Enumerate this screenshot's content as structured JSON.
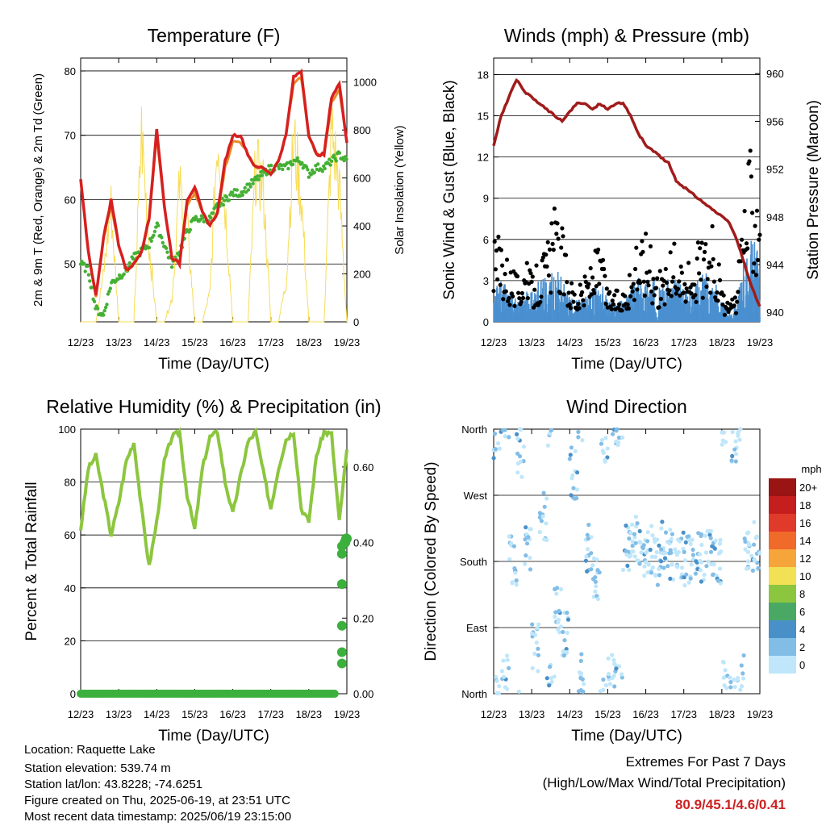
{
  "x_ticks": [
    "12/23",
    "13/23",
    "14/23",
    "15/23",
    "16/23",
    "17/23",
    "18/23",
    "19/23"
  ],
  "footer": {
    "location": "Location: Raquette Lake",
    "elevation": "Station elevation: 539.74 m",
    "latlon": "Station lat/lon: 43.8228; -74.6251",
    "created": "Figure created on Thu, 2025-06-19, at 23:51 UTC",
    "recent": "Most recent data timestamp: 2025/06/19 23:15:00",
    "extremes_title": "Extremes For Past 7 Days",
    "extremes_sub": "(High/Low/Max Wind/Total Precipitation)",
    "extremes_values": "80.9/45.1/4.6/0.41",
    "extremes_color": "#cc2222"
  },
  "chart_data": [
    {
      "type": "line",
      "title": "Temperature (F)",
      "xlabel": "Time (Day/UTC)",
      "ylabel": "2m & 9m T (Red, Orange) & 2m Td (Green)",
      "y2label": "Solar Insolation (Yellow)",
      "ylim": [
        41,
        82
      ],
      "yticks": [
        "50",
        "60",
        "70",
        "80"
      ],
      "y2lim": [
        0,
        1100
      ],
      "y2ticks": [
        "0",
        "200",
        "400",
        "600",
        "800",
        "1000"
      ],
      "x": [
        12.0,
        12.2,
        12.4,
        12.6,
        12.8,
        13.0,
        13.2,
        13.4,
        13.6,
        13.8,
        14.0,
        14.2,
        14.4,
        14.6,
        14.8,
        15.0,
        15.2,
        15.4,
        15.6,
        15.8,
        16.0,
        16.2,
        16.4,
        16.6,
        16.8,
        17.0,
        17.2,
        17.4,
        17.6,
        17.8,
        18.0,
        18.2,
        18.4,
        18.6,
        18.8,
        19.0
      ],
      "series": [
        {
          "color": "#d62020",
          "values": [
            63,
            52,
            45,
            54,
            60,
            53,
            49,
            50,
            52,
            57,
            71,
            59,
            51,
            50,
            60,
            62,
            58,
            56,
            58,
            66,
            70,
            70,
            67,
            65,
            65,
            64,
            66,
            70,
            79,
            80,
            70,
            67,
            67,
            76,
            78,
            69
          ]
        },
        {
          "color": "#e88a28",
          "values": [
            63,
            52,
            45,
            54,
            59,
            53,
            49,
            50,
            52,
            57,
            70,
            59,
            51,
            50,
            59,
            61,
            58,
            56,
            58,
            65,
            69,
            69,
            67,
            65,
            65,
            64,
            66,
            70,
            78,
            79,
            70,
            67,
            67,
            75,
            77,
            69
          ]
        },
        {
          "color": "#44b035",
          "values": [
            50,
            49,
            43,
            42,
            47,
            48,
            49,
            51,
            52,
            53,
            56,
            53,
            50,
            52,
            55,
            57,
            57,
            57,
            59,
            60,
            61,
            61,
            62,
            63,
            64,
            65,
            65,
            65,
            66,
            66,
            64,
            65,
            65,
            66,
            67,
            66
          ]
        },
        {
          "color": "#f7dc55",
          "axis": "right",
          "values": [
            0,
            0,
            0,
            250,
            600,
            0,
            0,
            0,
            980,
            400,
            0,
            0,
            120,
            700,
            500,
            0,
            0,
            150,
            980,
            600,
            0,
            0,
            0,
            800,
            700,
            0,
            0,
            200,
            950,
            650,
            0,
            0,
            0,
            1000,
            700,
            0
          ]
        }
      ]
    },
    {
      "type": "scatter",
      "title": "Winds (mph) & Pressure (mb)",
      "xlabel": "Time (Day/UTC)",
      "ylabel": "Sonic Wind & Gust (Blue, Black)",
      "y2label": "Station Pressure (Maroon)",
      "ylim": [
        0,
        19.2
      ],
      "yticks": [
        "0",
        "3",
        "6",
        "9",
        "12",
        "15",
        "18"
      ],
      "y2lim": [
        939.2,
        961.3
      ],
      "y2ticks": [
        "940",
        "944",
        "948",
        "952",
        "956",
        "960"
      ],
      "x": [
        12.0,
        12.2,
        12.4,
        12.6,
        12.8,
        13.0,
        13.2,
        13.4,
        13.6,
        13.8,
        14.0,
        14.2,
        14.4,
        14.6,
        14.8,
        15.0,
        15.2,
        15.4,
        15.6,
        15.8,
        16.0,
        16.2,
        16.4,
        16.6,
        16.8,
        17.0,
        17.2,
        17.4,
        17.6,
        17.8,
        18.0,
        18.2,
        18.4,
        18.6,
        18.8,
        19.0
      ],
      "series": [
        {
          "name": "pressure",
          "color": "#a01c1c",
          "axis": "right",
          "values": [
            954,
            956.5,
            958,
            959.5,
            958.5,
            958,
            957.5,
            957,
            956.5,
            956,
            956.8,
            957.5,
            957.5,
            957,
            957.5,
            957,
            957.5,
            957.5,
            956.5,
            955,
            954,
            953.5,
            953,
            952.5,
            951,
            950.5,
            950,
            949.5,
            949,
            948.5,
            948,
            947.5,
            946,
            944,
            942,
            940.5
          ]
        },
        {
          "name": "gust",
          "color": "#000000",
          "values": [
            5,
            6,
            4,
            3,
            4,
            3,
            4,
            5,
            7,
            6,
            3,
            2,
            3,
            4,
            5,
            2,
            2,
            2,
            3,
            5,
            6,
            4,
            3,
            4,
            5,
            3,
            4,
            5,
            6,
            6,
            2,
            1,
            2,
            9,
            12,
            10
          ]
        },
        {
          "name": "wind",
          "color": "#4a90d0",
          "values": [
            1.5,
            2,
            1.5,
            1,
            1.5,
            1.5,
            2,
            2,
            2.5,
            2,
            1.2,
            1,
            1.2,
            1.5,
            2,
            1,
            1,
            1,
            1.5,
            2,
            2,
            2,
            1.5,
            2,
            2,
            1.5,
            1.5,
            2,
            2.5,
            2,
            1,
            0.5,
            1,
            3,
            4,
            3
          ]
        }
      ]
    },
    {
      "type": "line",
      "title": "Relative Humidity (%) & Precipitation (in)",
      "xlabel": "Time (Day/UTC)",
      "ylabel": "Percent & Total Rainfall",
      "ylim": [
        0,
        100
      ],
      "yticks": [
        "0",
        "20",
        "40",
        "60",
        "80",
        "100"
      ],
      "y2lim": [
        0,
        0.7
      ],
      "y2ticks": [
        "0.00",
        "0.20",
        "0.40",
        "0.60"
      ],
      "x": [
        12.0,
        12.2,
        12.4,
        12.6,
        12.8,
        13.0,
        13.2,
        13.4,
        13.6,
        13.8,
        14.0,
        14.2,
        14.4,
        14.6,
        14.8,
        15.0,
        15.2,
        15.4,
        15.6,
        15.8,
        16.0,
        16.2,
        16.4,
        16.6,
        16.8,
        17.0,
        17.2,
        17.4,
        17.6,
        17.8,
        18.0,
        18.2,
        18.4,
        18.6,
        18.8,
        19.0
      ],
      "series": [
        {
          "name": "rh",
          "color": "#8cc63f",
          "values": [
            62,
            85,
            90,
            75,
            60,
            72,
            88,
            95,
            70,
            48,
            65,
            88,
            97,
            99,
            75,
            62,
            85,
            97,
            99,
            80,
            68,
            82,
            95,
            99,
            84,
            70,
            85,
            96,
            99,
            70,
            65,
            90,
            99,
            98,
            65,
            92
          ]
        },
        {
          "name": "precip",
          "color": "#3cb03c",
          "axis": "right",
          "values": [
            0,
            0,
            0,
            0,
            0,
            0,
            0,
            0,
            0,
            0,
            0,
            0,
            0,
            0,
            0,
            0,
            0,
            0,
            0,
            0,
            0,
            0,
            0,
            0,
            0,
            0,
            0,
            0,
            0,
            0,
            0,
            0,
            0,
            0.05,
            0.39,
            0.41
          ]
        }
      ]
    },
    {
      "type": "scatter",
      "title": "Wind Direction",
      "xlabel": "Time (Day/UTC)",
      "ylabel": "Direction (Colored By Speed)",
      "ytick_labels": [
        "North",
        "East",
        "South",
        "West",
        "North"
      ],
      "colorbar_unit": "mph",
      "colorbar_labels": [
        "0",
        "2",
        "4",
        "6",
        "8",
        "10",
        "12",
        "14",
        "16",
        "18",
        "20+"
      ],
      "colorbar_colors": [
        "#bfe6fa",
        "#82bde6",
        "#4a90c8",
        "#4aa865",
        "#8cc63f",
        "#f2e055",
        "#f5a53a",
        "#f06a2a",
        "#e03a2a",
        "#c41e1e",
        "#9a1414"
      ],
      "x": [
        12.0,
        12.2,
        12.4,
        12.6,
        12.8,
        13.0,
        13.2,
        13.4,
        13.6,
        13.8,
        14.0,
        14.2,
        14.4,
        14.6,
        14.8,
        15.0,
        15.2,
        15.4,
        15.6,
        15.8,
        16.0,
        16.2,
        16.4,
        16.6,
        16.8,
        17.0,
        17.2,
        17.4,
        17.6,
        17.8,
        18.0,
        18.2,
        18.4,
        18.6,
        18.8,
        19.0
      ],
      "series": [
        {
          "name": "direction",
          "values": [
            350,
            20,
            180,
            330,
            200,
            60,
            240,
            10,
            110,
            80,
            300,
            20,
            200,
            150,
            350,
            20,
            10,
            200,
            210,
            190,
            195,
            180,
            200,
            190,
            185,
            180,
            190,
            185,
            195,
            180,
            10,
            350,
            20,
            190,
            200,
            185
          ]
        }
      ]
    }
  ]
}
